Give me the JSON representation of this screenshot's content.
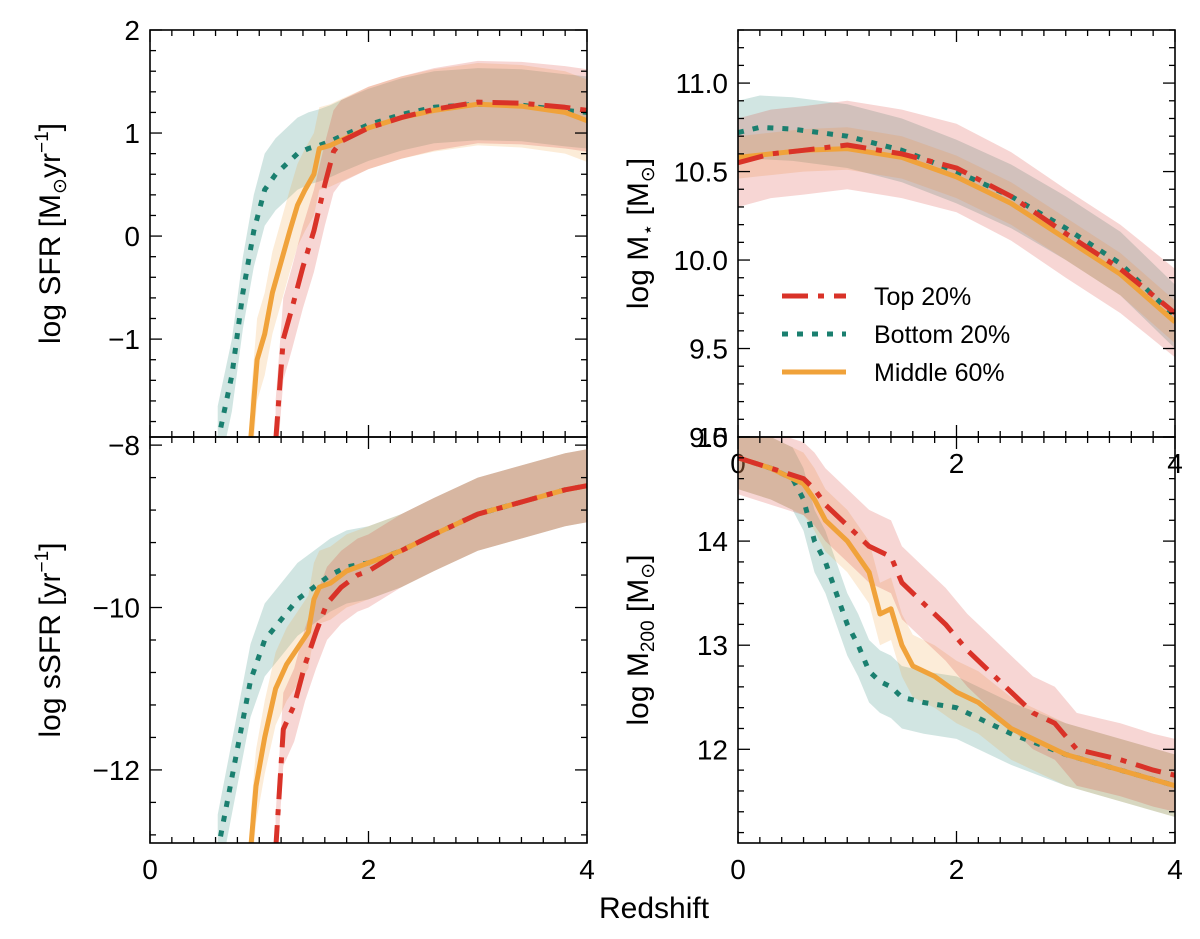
{
  "colors": {
    "top": "#d93228",
    "bottom": "#1a7f6f",
    "middle": "#f0a23a"
  },
  "chart_data": {
    "type": "line",
    "shared_xlabel": "Redshift",
    "xlim": [
      0,
      4
    ],
    "xticks": [
      0,
      2,
      4
    ],
    "legend": {
      "placement": "inside top-right panel, lower-middle",
      "entries": [
        {
          "key": "top",
          "label": "Top 20%",
          "style": "dashdot"
        },
        {
          "key": "bottom",
          "label": "Bottom 20%",
          "style": "dotted"
        },
        {
          "key": "middle",
          "label": "Middle 60%",
          "style": "solid"
        }
      ]
    },
    "panels": [
      {
        "id": "sfr",
        "ylabel_parts": [
          "log SFR [M",
          "⊙",
          "yr",
          "−1",
          "]"
        ],
        "ylim": [
          -1.95,
          2.0
        ],
        "yticks": [
          -1,
          0,
          1,
          2
        ],
        "ytick_labels": [
          "−1",
          "0",
          "1",
          "2"
        ],
        "show_xticklabels": false,
        "series": [
          {
            "key": "bottom",
            "x": [
              0.62,
              0.75,
              0.85,
              0.95,
              1.05,
              1.15,
              1.25,
              1.35,
              1.45,
              1.55,
              1.65,
              1.75,
              2.0,
              2.3,
              2.6,
              3.0,
              3.4,
              3.8,
              4.0
            ],
            "y": [
              -2.0,
              -1.35,
              -0.55,
              0.05,
              0.45,
              0.6,
              0.7,
              0.8,
              0.85,
              0.88,
              0.92,
              0.97,
              1.08,
              1.18,
              1.25,
              1.28,
              1.27,
              1.22,
              1.2
            ],
            "band": 0.35
          },
          {
            "key": "middle",
            "x": [
              0.92,
              0.98,
              1.05,
              1.12,
              1.2,
              1.28,
              1.35,
              1.42,
              1.5,
              1.55,
              1.65,
              1.75,
              2.0,
              2.3,
              2.6,
              3.0,
              3.4,
              3.8,
              4.0
            ],
            "y": [
              -2.0,
              -1.2,
              -0.95,
              -0.55,
              -0.25,
              0.05,
              0.3,
              0.45,
              0.6,
              0.85,
              0.88,
              0.93,
              1.05,
              1.15,
              1.22,
              1.28,
              1.26,
              1.2,
              1.12
            ],
            "band": 0.4
          },
          {
            "key": "top",
            "x": [
              1.15,
              1.22,
              1.3,
              1.4,
              1.5,
              1.6,
              1.68,
              1.75,
              2.0,
              2.3,
              2.6,
              3.0,
              3.4,
              3.8,
              4.0
            ],
            "y": [
              -2.0,
              -1.0,
              -0.7,
              -0.3,
              0.05,
              0.5,
              0.82,
              0.92,
              1.05,
              1.15,
              1.23,
              1.3,
              1.29,
              1.25,
              1.22
            ],
            "band": 0.4
          }
        ]
      },
      {
        "id": "mstar",
        "ylabel_parts": [
          "log M",
          "⋆",
          " [M",
          "⊙",
          "]"
        ],
        "ylim": [
          9.0,
          11.3
        ],
        "yticks": [
          9.0,
          9.5,
          10.0,
          10.5,
          11.0
        ],
        "ytick_labels": [
          "9.0",
          "9.5",
          "10.0",
          "10.5",
          "11.0"
        ],
        "show_xticklabels": true,
        "series": [
          {
            "key": "bottom",
            "x": [
              0,
              0.2,
              0.5,
              1.0,
              1.5,
              2.0,
              2.5,
              3.0,
              3.5,
              4.0
            ],
            "y": [
              10.72,
              10.75,
              10.74,
              10.7,
              10.62,
              10.5,
              10.36,
              10.18,
              9.98,
              9.68
            ],
            "band": 0.18
          },
          {
            "key": "middle",
            "x": [
              0,
              0.3,
              0.6,
              1.0,
              1.5,
              2.0,
              2.5,
              3.0,
              3.5,
              4.0
            ],
            "y": [
              10.58,
              10.6,
              10.62,
              10.63,
              10.58,
              10.47,
              10.32,
              10.12,
              9.92,
              9.65
            ],
            "band": 0.12
          },
          {
            "key": "top",
            "x": [
              0,
              0.3,
              0.6,
              1.0,
              1.5,
              2.0,
              2.5,
              3.0,
              3.5,
              4.0
            ],
            "y": [
              10.55,
              10.6,
              10.62,
              10.65,
              10.6,
              10.52,
              10.36,
              10.15,
              9.95,
              9.7
            ],
            "band": 0.25
          }
        ]
      },
      {
        "id": "ssfr",
        "ylabel_parts": [
          "log sSFR [yr",
          "−1",
          "]"
        ],
        "ylim": [
          -12.9,
          -7.9
        ],
        "yticks": [
          -12,
          -10,
          -8
        ],
        "ytick_labels": [
          "−12",
          "−10",
          "−8"
        ],
        "show_xticklabels": true,
        "series": [
          {
            "key": "bottom",
            "x": [
              0.62,
              0.72,
              0.82,
              0.92,
              1.05,
              1.2,
              1.35,
              1.5,
              1.65,
              1.8,
              2.0,
              2.3,
              2.6,
              3.0,
              3.4,
              3.8,
              4.0
            ],
            "y": [
              -13.0,
              -12.3,
              -11.6,
              -10.9,
              -10.4,
              -10.15,
              -9.9,
              -9.75,
              -9.6,
              -9.5,
              -9.45,
              -9.3,
              -9.1,
              -8.85,
              -8.7,
              -8.55,
              -8.5
            ],
            "band": 0.45
          },
          {
            "key": "middle",
            "x": [
              0.92,
              0.97,
              1.05,
              1.15,
              1.25,
              1.35,
              1.45,
              1.5,
              1.55,
              1.65,
              1.8,
              2.0,
              2.3,
              2.6,
              3.0,
              3.4,
              3.8,
              4.0
            ],
            "y": [
              -13.0,
              -12.2,
              -11.6,
              -11.0,
              -10.7,
              -10.5,
              -10.3,
              -9.9,
              -9.75,
              -9.7,
              -9.55,
              -9.45,
              -9.3,
              -9.1,
              -8.85,
              -8.7,
              -8.55,
              -8.5
            ],
            "band": 0.45
          },
          {
            "key": "top",
            "x": [
              1.15,
              1.22,
              1.32,
              1.42,
              1.52,
              1.62,
              1.75,
              1.9,
              2.0,
              2.3,
              2.6,
              3.0,
              3.4,
              3.8,
              4.0
            ],
            "y": [
              -13.0,
              -11.5,
              -11.2,
              -10.7,
              -10.3,
              -9.95,
              -9.75,
              -9.6,
              -9.55,
              -9.3,
              -9.1,
              -8.85,
              -8.7,
              -8.55,
              -8.5
            ],
            "band": 0.45
          }
        ]
      },
      {
        "id": "m200",
        "ylabel_parts": [
          "log M",
          "200",
          " [M",
          "⊙",
          "]"
        ],
        "ylim": [
          11.1,
          15.0
        ],
        "yticks": [
          12,
          13,
          14,
          15
        ],
        "ytick_labels": [
          "12",
          "13",
          "14",
          "15"
        ],
        "show_xticklabels": true,
        "series": [
          {
            "key": "bottom",
            "x": [
              0,
              0.3,
              0.5,
              0.6,
              0.7,
              0.8,
              0.9,
              1.0,
              1.1,
              1.2,
              1.3,
              1.4,
              1.5,
              1.7,
              2.0,
              2.5,
              3.0,
              3.5,
              4.0
            ],
            "y": [
              14.8,
              14.7,
              14.6,
              14.4,
              14.0,
              13.8,
              13.5,
              13.2,
              13.0,
              12.75,
              12.65,
              12.6,
              12.5,
              12.45,
              12.4,
              12.15,
              11.95,
              11.8,
              11.65
            ],
            "band": 0.3
          },
          {
            "key": "middle",
            "x": [
              0,
              0.3,
              0.5,
              0.6,
              0.7,
              0.8,
              0.9,
              1.0,
              1.1,
              1.2,
              1.3,
              1.4,
              1.5,
              1.6,
              1.8,
              2.0,
              2.2,
              2.5,
              3.0,
              3.5,
              4.0
            ],
            "y": [
              14.8,
              14.7,
              14.6,
              14.55,
              14.4,
              14.2,
              14.1,
              14.0,
              13.85,
              13.7,
              13.3,
              13.35,
              13.0,
              12.8,
              12.7,
              12.55,
              12.45,
              12.2,
              11.95,
              11.8,
              11.65
            ],
            "band": 0.3
          },
          {
            "key": "top",
            "x": [
              0,
              0.3,
              0.6,
              0.7,
              0.8,
              0.9,
              1.0,
              1.1,
              1.2,
              1.3,
              1.4,
              1.5,
              1.7,
              1.9,
              2.1,
              2.3,
              2.5,
              2.7,
              2.9,
              3.1,
              3.3,
              3.5,
              3.8,
              4.0
            ],
            "y": [
              14.8,
              14.7,
              14.6,
              14.5,
              14.35,
              14.25,
              14.15,
              14.05,
              13.95,
              13.9,
              13.85,
              13.6,
              13.4,
              13.2,
              12.95,
              12.75,
              12.55,
              12.35,
              12.25,
              12.0,
              11.95,
              11.9,
              11.8,
              11.75
            ],
            "band": 0.35
          }
        ]
      }
    ]
  }
}
